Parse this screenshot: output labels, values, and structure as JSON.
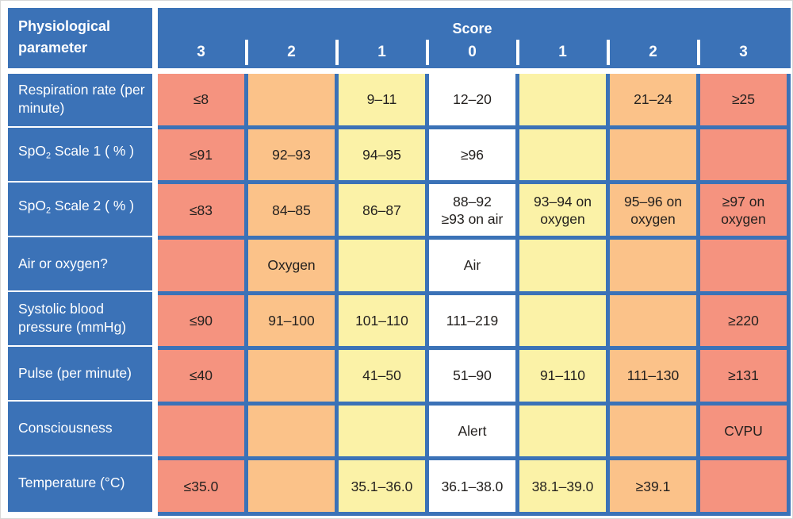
{
  "palette": {
    "header_blue": "#3B72B7",
    "score_red": "#F5937F",
    "score_orange": "#FBC289",
    "score_yellow": "#FBF2A7",
    "score_white": "#FFFFFF",
    "cell_text": "#24211F",
    "frame_border": "#D8D8D8"
  },
  "header": {
    "parameter_label": "Physiological parameter",
    "score_title": "Score",
    "score_columns": [
      "3",
      "2",
      "1",
      "0",
      "1",
      "2",
      "3"
    ]
  },
  "rows": [
    {
      "label": [
        {
          "t": "Respiration rate (per minute)"
        }
      ],
      "cells": [
        {
          "tone": "red",
          "text": "≤8"
        },
        {
          "tone": "orange",
          "text": ""
        },
        {
          "tone": "yellow",
          "text": "9–11"
        },
        {
          "tone": "white",
          "text": "12–20"
        },
        {
          "tone": "yellow",
          "text": ""
        },
        {
          "tone": "orange",
          "text": "21–24"
        },
        {
          "tone": "red",
          "text": "≥25"
        }
      ]
    },
    {
      "label": [
        {
          "t": "SpO"
        },
        {
          "t": "2",
          "sub": true
        },
        {
          "t": " Scale 1 ( % )"
        }
      ],
      "cells": [
        {
          "tone": "red",
          "text": "≤91"
        },
        {
          "tone": "orange",
          "text": "92–93"
        },
        {
          "tone": "yellow",
          "text": "94–95"
        },
        {
          "tone": "white",
          "text": "≥96"
        },
        {
          "tone": "yellow",
          "text": ""
        },
        {
          "tone": "orange",
          "text": ""
        },
        {
          "tone": "red",
          "text": ""
        }
      ]
    },
    {
      "label": [
        {
          "t": "SpO"
        },
        {
          "t": "2",
          "sub": true
        },
        {
          "t": " Scale 2 ( % )"
        }
      ],
      "cells": [
        {
          "tone": "red",
          "text": "≤83"
        },
        {
          "tone": "orange",
          "text": "84–85"
        },
        {
          "tone": "yellow",
          "text": "86–87"
        },
        {
          "tone": "white",
          "lines": [
            "88–92",
            "≥93 on air"
          ]
        },
        {
          "tone": "yellow",
          "lines": [
            "93–94 on",
            "oxygen"
          ]
        },
        {
          "tone": "orange",
          "lines": [
            "95–96 on",
            "oxygen"
          ]
        },
        {
          "tone": "red",
          "lines": [
            "≥97 on",
            "oxygen"
          ]
        }
      ]
    },
    {
      "label": [
        {
          "t": "Air or oxygen?"
        }
      ],
      "cells": [
        {
          "tone": "red",
          "text": ""
        },
        {
          "tone": "orange",
          "text": "Oxygen"
        },
        {
          "tone": "yellow",
          "text": ""
        },
        {
          "tone": "white",
          "text": "Air"
        },
        {
          "tone": "yellow",
          "text": ""
        },
        {
          "tone": "orange",
          "text": ""
        },
        {
          "tone": "red",
          "text": ""
        }
      ]
    },
    {
      "label": [
        {
          "t": "Systolic blood pressure (mmHg)"
        }
      ],
      "cells": [
        {
          "tone": "red",
          "text": "≤90"
        },
        {
          "tone": "orange",
          "text": "91–100"
        },
        {
          "tone": "yellow",
          "text": "101–110"
        },
        {
          "tone": "white",
          "text": "111–219"
        },
        {
          "tone": "yellow",
          "text": ""
        },
        {
          "tone": "orange",
          "text": ""
        },
        {
          "tone": "red",
          "text": "≥220"
        }
      ]
    },
    {
      "label": [
        {
          "t": "Pulse (per minute)"
        }
      ],
      "cells": [
        {
          "tone": "red",
          "text": "≤40"
        },
        {
          "tone": "orange",
          "text": ""
        },
        {
          "tone": "yellow",
          "text": "41–50"
        },
        {
          "tone": "white",
          "text": "51–90"
        },
        {
          "tone": "yellow",
          "text": "91–110"
        },
        {
          "tone": "orange",
          "text": "111–130"
        },
        {
          "tone": "red",
          "text": "≥131"
        }
      ]
    },
    {
      "label": [
        {
          "t": "Consciousness"
        }
      ],
      "cells": [
        {
          "tone": "red",
          "text": ""
        },
        {
          "tone": "orange",
          "text": ""
        },
        {
          "tone": "yellow",
          "text": ""
        },
        {
          "tone": "white",
          "text": "Alert"
        },
        {
          "tone": "yellow",
          "text": ""
        },
        {
          "tone": "orange",
          "text": ""
        },
        {
          "tone": "red",
          "text": "CVPU"
        }
      ]
    },
    {
      "label": [
        {
          "t": "Temperature (°C)"
        }
      ],
      "cells": [
        {
          "tone": "red",
          "text": "≤35.0"
        },
        {
          "tone": "orange",
          "text": ""
        },
        {
          "tone": "yellow",
          "text": "35.1–36.0"
        },
        {
          "tone": "white",
          "text": "36.1–38.0"
        },
        {
          "tone": "yellow",
          "text": "38.1–39.0"
        },
        {
          "tone": "orange",
          "text": "≥39.1"
        },
        {
          "tone": "red",
          "text": ""
        }
      ]
    }
  ],
  "chart_data": {
    "type": "table",
    "title": "Score",
    "row_header": "Physiological parameter",
    "columns": [
      "3",
      "2",
      "1",
      "0",
      "1",
      "2",
      "3"
    ],
    "color_legend": {
      "red": "score 3",
      "orange": "score 2",
      "yellow": "score 1",
      "white": "score 0"
    },
    "rows": [
      {
        "parameter": "Respiration rate (per minute)",
        "values": [
          "≤8",
          "",
          "9–11",
          "12–20",
          "",
          "21–24",
          "≥25"
        ]
      },
      {
        "parameter": "SpO2 Scale 1 ( % )",
        "values": [
          "≤91",
          "92–93",
          "94–95",
          "≥96",
          "",
          "",
          ""
        ]
      },
      {
        "parameter": "SpO2 Scale 2 ( % )",
        "values": [
          "≤83",
          "84–85",
          "86–87",
          "88–92 ≥93 on air",
          "93–94 on oxygen",
          "95–96 on oxygen",
          "≥97 on oxygen"
        ]
      },
      {
        "parameter": "Air or oxygen?",
        "values": [
          "",
          "Oxygen",
          "",
          "Air",
          "",
          "",
          ""
        ]
      },
      {
        "parameter": "Systolic blood pressure (mmHg)",
        "values": [
          "≤90",
          "91–100",
          "101–110",
          "111–219",
          "",
          "",
          "≥220"
        ]
      },
      {
        "parameter": "Pulse (per minute)",
        "values": [
          "≤40",
          "",
          "41–50",
          "51–90",
          "91–110",
          "111–130",
          "≥131"
        ]
      },
      {
        "parameter": "Consciousness",
        "values": [
          "",
          "",
          "",
          "Alert",
          "",
          "",
          "CVPU"
        ]
      },
      {
        "parameter": "Temperature (°C)",
        "values": [
          "≤35.0",
          "",
          "35.1–36.0",
          "36.1–38.0",
          "38.1–39.0",
          "≥39.1",
          ""
        ]
      }
    ]
  }
}
